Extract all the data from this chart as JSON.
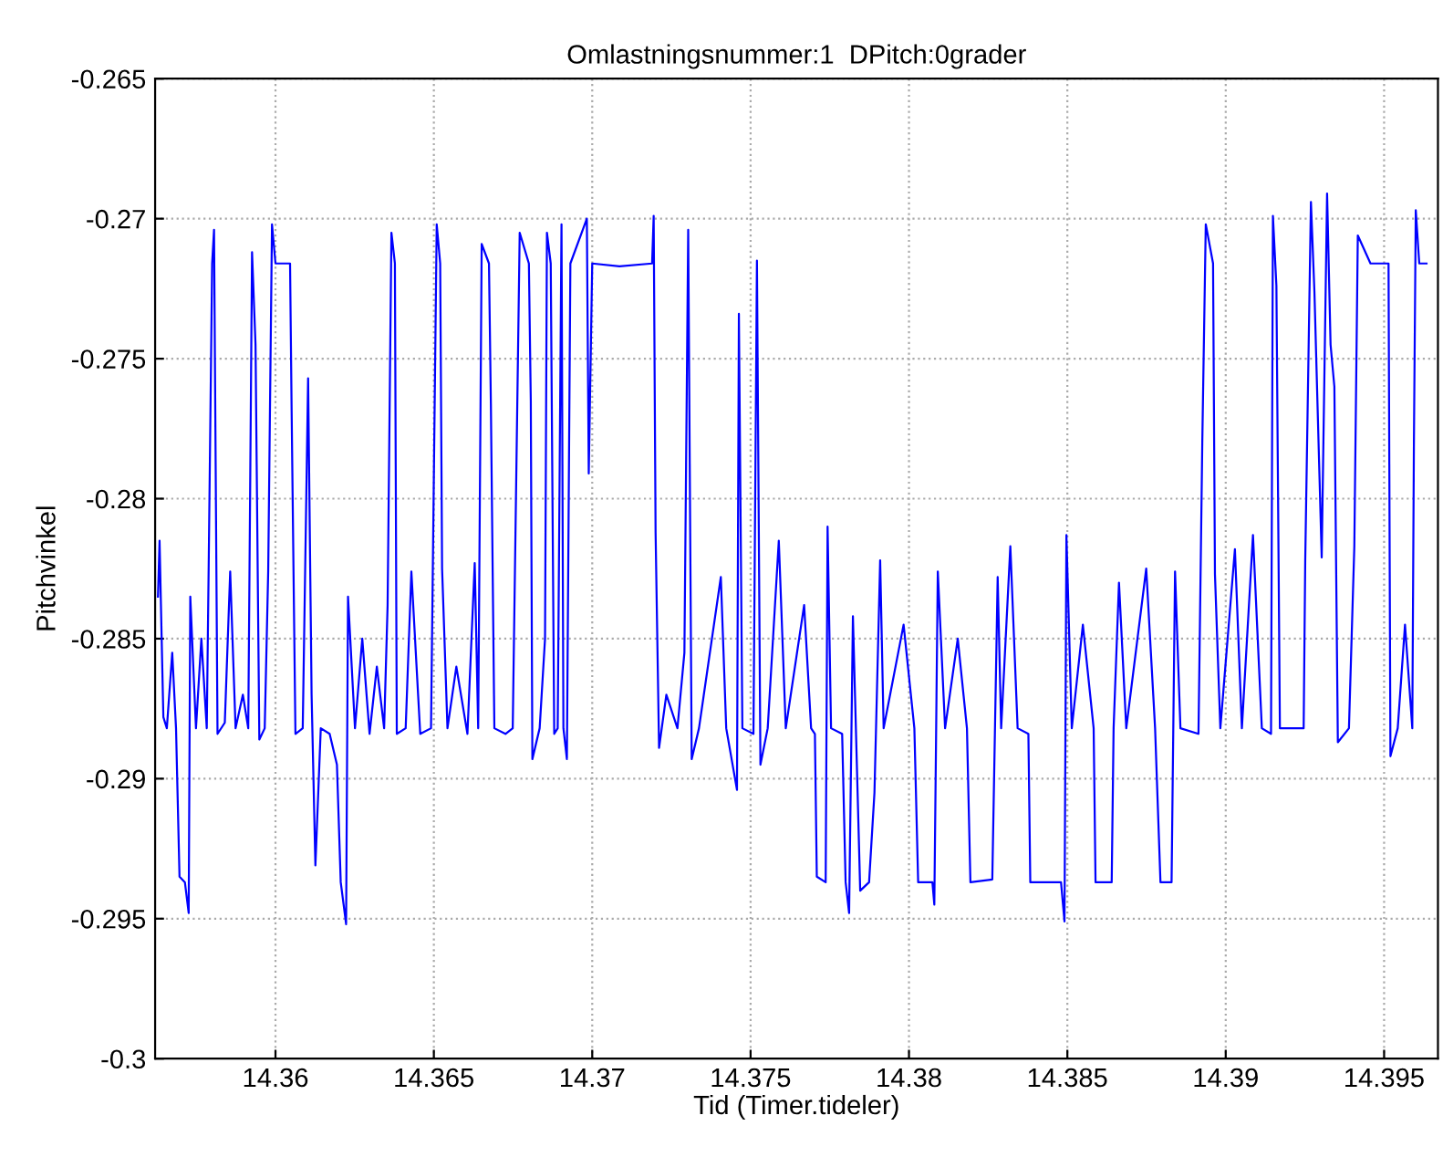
{
  "chart_data": {
    "type": "line",
    "title": "Omlastningsnummer:1  DPitch:0grader",
    "xlabel": "Tid (Timer.tideler)",
    "ylabel": "Pitchvinkel",
    "xlim": [
      14.3562,
      14.3967
    ],
    "xticks": [
      14.36,
      14.365,
      14.37,
      14.375,
      14.38,
      14.385,
      14.39,
      14.395
    ],
    "ylim": [
      -0.3,
      -0.265
    ],
    "yticks": [
      -0.3,
      -0.295,
      -0.29,
      -0.285,
      -0.28,
      -0.275,
      -0.27,
      -0.265
    ],
    "grid": true,
    "marker": "none",
    "line_style": "solid",
    "series": [
      {
        "color": "#0000ff",
        "x": [
          14.35629,
          14.35634,
          14.35646,
          14.35657,
          14.35674,
          14.35686,
          14.35697,
          14.35714,
          14.35726,
          14.35731,
          14.35749,
          14.35766,
          14.35783,
          14.35789,
          14.358,
          14.35806,
          14.35817,
          14.3584,
          14.35857,
          14.35874,
          14.35897,
          14.35914,
          14.35926,
          14.35937,
          14.35949,
          14.35966,
          14.35977,
          14.35989,
          14.36,
          14.36046,
          14.36051,
          14.36063,
          14.36086,
          14.36103,
          14.36114,
          14.36126,
          14.36143,
          14.36171,
          14.36194,
          14.36206,
          14.36223,
          14.36229,
          14.36251,
          14.36274,
          14.36297,
          14.3632,
          14.36343,
          14.36354,
          14.36366,
          14.36377,
          14.36383,
          14.36411,
          14.36429,
          14.36457,
          14.36491,
          14.36509,
          14.3652,
          14.36526,
          14.36543,
          14.36571,
          14.36606,
          14.36629,
          14.3664,
          14.36651,
          14.36674,
          14.3668,
          14.36691,
          14.36726,
          14.36749,
          14.36771,
          14.368,
          14.36806,
          14.36811,
          14.36834,
          14.36851,
          14.36857,
          14.36869,
          14.3688,
          14.36891,
          14.36903,
          14.36909,
          14.3692,
          14.36931,
          14.36983,
          14.36989,
          14.37,
          14.37086,
          14.37189,
          14.37194,
          14.372,
          14.37211,
          14.37234,
          14.37269,
          14.37291,
          14.37303,
          14.37314,
          14.37337,
          14.37406,
          14.37423,
          14.37457,
          14.37463,
          14.37474,
          14.37509,
          14.3752,
          14.37531,
          14.37554,
          14.37589,
          14.37611,
          14.37669,
          14.37691,
          14.37703,
          14.37709,
          14.37737,
          14.37743,
          14.37754,
          14.37789,
          14.378,
          14.37811,
          14.37823,
          14.37846,
          14.37874,
          14.37891,
          14.37909,
          14.3792,
          14.37983,
          14.38017,
          14.38029,
          14.38074,
          14.3808,
          14.38091,
          14.38114,
          14.38154,
          14.38183,
          14.38194,
          14.38263,
          14.3828,
          14.38291,
          14.3832,
          14.38343,
          14.38377,
          14.38383,
          14.3848,
          14.38491,
          14.38497,
          14.38514,
          14.38549,
          14.38583,
          14.38589,
          14.3864,
          14.38646,
          14.38663,
          14.38686,
          14.38749,
          14.38777,
          14.38794,
          14.38829,
          14.3884,
          14.38857,
          14.38914,
          14.38926,
          14.38937,
          14.3896,
          14.38966,
          14.38983,
          14.39029,
          14.39051,
          14.39086,
          14.39114,
          14.39143,
          14.39149,
          14.3916,
          14.39171,
          14.39246,
          14.39251,
          14.39269,
          14.3928,
          14.39303,
          14.3932,
          14.39331,
          14.39343,
          14.39354,
          14.39389,
          14.39406,
          14.39417,
          14.39457,
          14.39514,
          14.3952,
          14.39543,
          14.39566,
          14.39589,
          14.39594,
          14.396,
          14.39611,
          14.39634
        ],
        "values": [
          -0.2835,
          -0.2815,
          -0.2878,
          -0.2882,
          -0.2855,
          -0.2882,
          -0.2935,
          -0.2937,
          -0.2948,
          -0.2835,
          -0.2882,
          -0.285,
          -0.2882,
          -0.2825,
          -0.2716,
          -0.2704,
          -0.2884,
          -0.288,
          -0.2826,
          -0.2882,
          -0.287,
          -0.2882,
          -0.2712,
          -0.2745,
          -0.2886,
          -0.2882,
          -0.2826,
          -0.2702,
          -0.2716,
          -0.2716,
          -0.2769,
          -0.2884,
          -0.2882,
          -0.2757,
          -0.287,
          -0.2931,
          -0.2882,
          -0.2884,
          -0.2895,
          -0.2937,
          -0.2952,
          -0.2835,
          -0.2882,
          -0.285,
          -0.2884,
          -0.286,
          -0.2882,
          -0.2838,
          -0.2705,
          -0.2716,
          -0.2884,
          -0.2882,
          -0.2826,
          -0.2884,
          -0.2882,
          -0.2702,
          -0.2716,
          -0.2825,
          -0.2882,
          -0.286,
          -0.2884,
          -0.2823,
          -0.2882,
          -0.2709,
          -0.2716,
          -0.2766,
          -0.2882,
          -0.2884,
          -0.2882,
          -0.2705,
          -0.2716,
          -0.2765,
          -0.2893,
          -0.2882,
          -0.285,
          -0.2705,
          -0.2716,
          -0.2884,
          -0.2882,
          -0.2702,
          -0.2882,
          -0.2893,
          -0.2716,
          -0.27,
          -0.2791,
          -0.2716,
          -0.2717,
          -0.2716,
          -0.2699,
          -0.2812,
          -0.2889,
          -0.287,
          -0.2882,
          -0.2855,
          -0.2704,
          -0.2893,
          -0.2882,
          -0.2828,
          -0.2882,
          -0.2904,
          -0.2734,
          -0.2882,
          -0.2884,
          -0.2715,
          -0.2895,
          -0.2882,
          -0.2815,
          -0.2882,
          -0.2838,
          -0.2882,
          -0.2884,
          -0.2935,
          -0.2937,
          -0.281,
          -0.2882,
          -0.2884,
          -0.2937,
          -0.2948,
          -0.2842,
          -0.294,
          -0.2937,
          -0.2905,
          -0.2822,
          -0.2882,
          -0.2845,
          -0.2882,
          -0.2937,
          -0.2937,
          -0.2945,
          -0.2826,
          -0.2882,
          -0.285,
          -0.2882,
          -0.2937,
          -0.2936,
          -0.2828,
          -0.2882,
          -0.2817,
          -0.2882,
          -0.2884,
          -0.2937,
          -0.2937,
          -0.2951,
          -0.2813,
          -0.2882,
          -0.2845,
          -0.2882,
          -0.2937,
          -0.2937,
          -0.2882,
          -0.283,
          -0.2882,
          -0.2825,
          -0.2882,
          -0.2937,
          -0.2937,
          -0.2826,
          -0.2882,
          -0.2884,
          -0.278,
          -0.2702,
          -0.2716,
          -0.2827,
          -0.2882,
          -0.2818,
          -0.2882,
          -0.2813,
          -0.2882,
          -0.2884,
          -0.2699,
          -0.2724,
          -0.2882,
          -0.2882,
          -0.2822,
          -0.2694,
          -0.2726,
          -0.2821,
          -0.2691,
          -0.2745,
          -0.276,
          -0.2887,
          -0.2882,
          -0.2817,
          -0.2706,
          -0.2716,
          -0.2716,
          -0.2892,
          -0.2882,
          -0.2845,
          -0.2882,
          -0.2782,
          -0.2697,
          -0.2716,
          -0.2716
        ]
      }
    ]
  }
}
